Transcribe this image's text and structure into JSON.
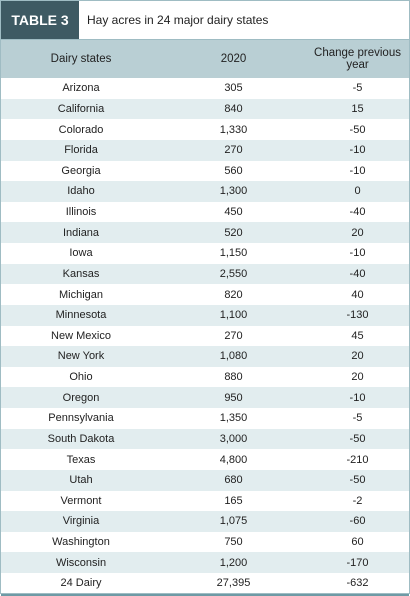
{
  "header": {
    "label": "TABLE 3",
    "title": "Hay acres in 24 major dairy states"
  },
  "table": {
    "columns": [
      "Dairy states",
      "2020",
      "Change previous year"
    ],
    "rows": [
      [
        "Arizona",
        "305",
        "-5"
      ],
      [
        "California",
        "840",
        "15"
      ],
      [
        "Colorado",
        "1,330",
        "-50"
      ],
      [
        "Florida",
        "270",
        "-10"
      ],
      [
        "Georgia",
        "560",
        "-10"
      ],
      [
        "Idaho",
        "1,300",
        "0"
      ],
      [
        "Illinois",
        "450",
        "-40"
      ],
      [
        "Indiana",
        "520",
        "20"
      ],
      [
        "Iowa",
        "1,150",
        "-10"
      ],
      [
        "Kansas",
        "2,550",
        "-40"
      ],
      [
        "Michigan",
        "820",
        "40"
      ],
      [
        "Minnesota",
        "1,100",
        "-130"
      ],
      [
        "New Mexico",
        "270",
        "45"
      ],
      [
        "New York",
        "1,080",
        "20"
      ],
      [
        "Ohio",
        "880",
        "20"
      ],
      [
        "Oregon",
        "950",
        "-10"
      ],
      [
        "Pennsylvania",
        "1,350",
        "-5"
      ],
      [
        "South Dakota",
        "3,000",
        "-50"
      ],
      [
        "Texas",
        "4,800",
        "-210"
      ],
      [
        "Utah",
        "680",
        "-50"
      ],
      [
        "Vermont",
        "165",
        "-2"
      ],
      [
        "Virginia",
        "1,075",
        "-60"
      ],
      [
        "Washington",
        "750",
        "60"
      ],
      [
        "Wisconsin",
        "1,200",
        "-170"
      ],
      [
        "24 Dairy",
        "27,395",
        "-632"
      ]
    ]
  }
}
